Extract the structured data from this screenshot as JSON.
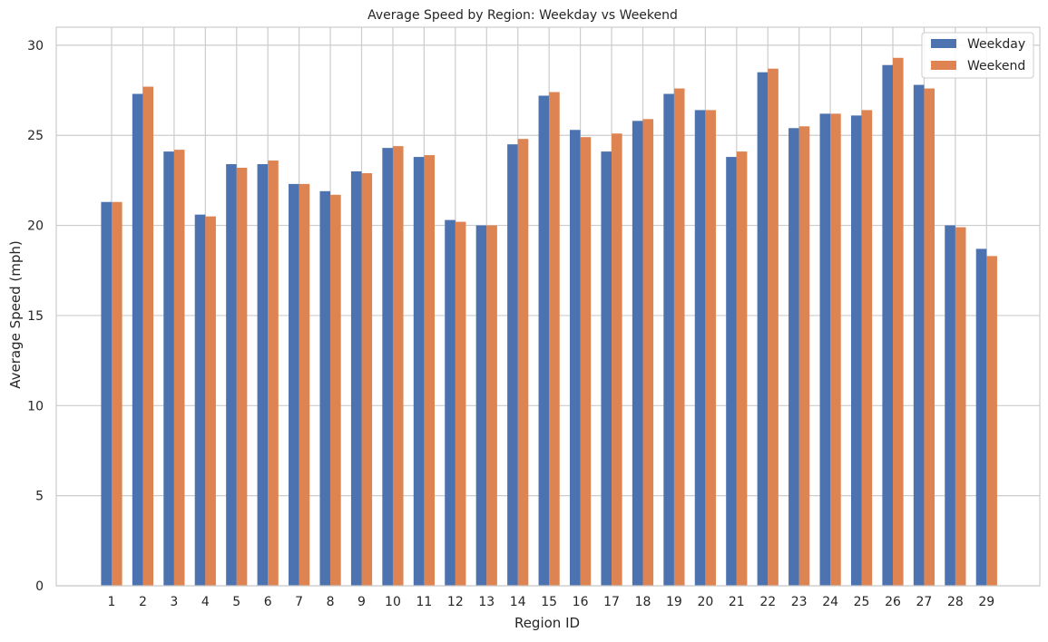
{
  "chart_data": {
    "type": "bar",
    "title": "Average Speed by Region: Weekday vs Weekend",
    "xlabel": "Region ID",
    "ylabel": "Average Speed (mph)",
    "ylim": [
      0,
      31
    ],
    "yticks": [
      0,
      5,
      10,
      15,
      20,
      25,
      30
    ],
    "grid": true,
    "legend_position": "top-right",
    "categories": [
      "1",
      "2",
      "3",
      "4",
      "5",
      "6",
      "7",
      "8",
      "9",
      "10",
      "11",
      "12",
      "13",
      "14",
      "15",
      "16",
      "17",
      "18",
      "19",
      "20",
      "21",
      "22",
      "23",
      "24",
      "25",
      "26",
      "27",
      "28",
      "29"
    ],
    "series": [
      {
        "name": "Weekday",
        "color": "#4c72b0",
        "values": [
          21.3,
          27.3,
          24.1,
          20.6,
          23.4,
          23.4,
          22.3,
          21.9,
          23.0,
          24.3,
          23.8,
          20.3,
          20.0,
          24.5,
          27.2,
          25.3,
          24.1,
          25.8,
          27.3,
          26.4,
          23.8,
          28.5,
          25.4,
          26.2,
          26.1,
          28.9,
          27.8,
          20.0,
          18.7
        ]
      },
      {
        "name": "Weekend",
        "color": "#dd8452",
        "values": [
          21.3,
          27.7,
          24.2,
          20.5,
          23.2,
          23.6,
          22.3,
          21.7,
          22.9,
          24.4,
          23.9,
          20.2,
          20.0,
          24.8,
          27.4,
          24.9,
          25.1,
          25.9,
          27.6,
          26.4,
          24.1,
          28.7,
          25.5,
          26.2,
          26.4,
          29.3,
          27.6,
          19.9,
          18.3
        ]
      }
    ]
  }
}
